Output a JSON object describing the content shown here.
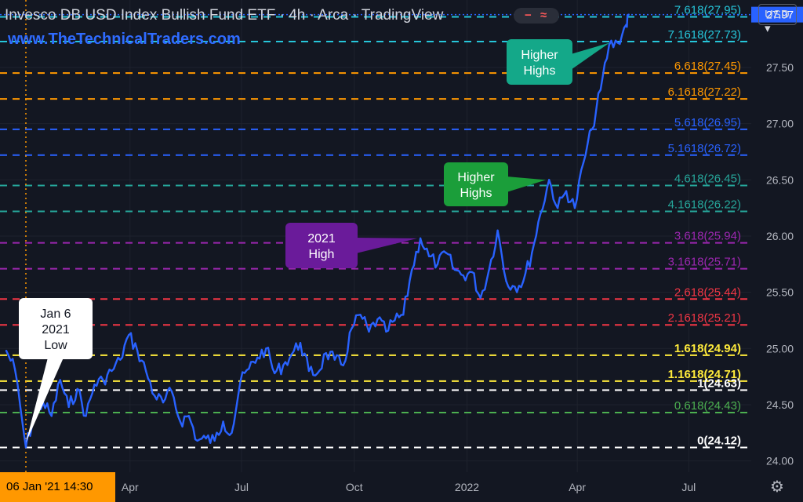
{
  "header": {
    "title": "Invesco DB USD Index Bullish Fund ETF · 4h · Arca · TradingView",
    "watermark": "www.TheTechnicalTraders.com",
    "currency": "USD",
    "settings_icon": "gear-icon",
    "indicator_icons": [
      "minus-icon",
      "wave-icon"
    ]
  },
  "crosshair": {
    "date_label": "06 Jan '21   14:30",
    "color": "#ff9800"
  },
  "colors": {
    "background": "#131722",
    "price_line": "#2962ff",
    "grid": "#1e222d",
    "axis_text": "#b2b5be",
    "last_price_bg": "#2962ff"
  },
  "chart_data": {
    "type": "line",
    "x_axis": {
      "ticks": [
        "Apr",
        "Jul",
        "Oct",
        "2022",
        "Apr",
        "Jul"
      ]
    },
    "y_axis": {
      "ticks": [
        24.0,
        24.5,
        25.0,
        25.5,
        26.0,
        26.5,
        27.0,
        27.5
      ],
      "tick_labels": [
        "24.00",
        "24.50",
        "25.00",
        "25.50",
        "26.00",
        "26.50",
        "27.00",
        "27.50"
      ],
      "range": [
        23.9,
        28.1
      ]
    },
    "last_price": "27.97",
    "series": [
      {
        "points": [
          [
            "2020-12-21",
            24.98
          ],
          [
            "2020-12-28",
            24.82
          ],
          [
            "2021-01-06",
            24.12
          ],
          [
            "2021-01-13",
            24.42
          ],
          [
            "2021-01-20",
            24.52
          ],
          [
            "2021-01-27",
            24.4
          ],
          [
            "2021-02-03",
            24.72
          ],
          [
            "2021-02-10",
            24.48
          ],
          [
            "2021-02-17",
            24.64
          ],
          [
            "2021-02-24",
            24.4
          ],
          [
            "2021-03-03",
            24.68
          ],
          [
            "2021-03-10",
            24.72
          ],
          [
            "2021-03-17",
            24.8
          ],
          [
            "2021-03-24",
            24.9
          ],
          [
            "2021-03-31",
            25.12
          ],
          [
            "2021-04-07",
            24.98
          ],
          [
            "2021-04-14",
            24.8
          ],
          [
            "2021-04-21",
            24.58
          ],
          [
            "2021-04-28",
            24.52
          ],
          [
            "2021-05-05",
            24.62
          ],
          [
            "2021-05-12",
            24.35
          ],
          [
            "2021-05-19",
            24.4
          ],
          [
            "2021-05-26",
            24.18
          ],
          [
            "2021-06-02",
            24.2
          ],
          [
            "2021-06-09",
            24.18
          ],
          [
            "2021-06-16",
            24.35
          ],
          [
            "2021-06-23",
            24.25
          ],
          [
            "2021-06-30",
            24.7
          ],
          [
            "2021-07-07",
            24.82
          ],
          [
            "2021-07-14",
            24.92
          ],
          [
            "2021-07-21",
            25.0
          ],
          [
            "2021-07-28",
            24.78
          ],
          [
            "2021-08-04",
            24.85
          ],
          [
            "2021-08-11",
            24.95
          ],
          [
            "2021-08-18",
            25.05
          ],
          [
            "2021-08-25",
            24.8
          ],
          [
            "2021-09-01",
            24.78
          ],
          [
            "2021-09-08",
            24.96
          ],
          [
            "2021-09-15",
            24.9
          ],
          [
            "2021-09-22",
            24.85
          ],
          [
            "2021-09-29",
            25.18
          ],
          [
            "2021-10-06",
            25.3
          ],
          [
            "2021-10-13",
            25.15
          ],
          [
            "2021-10-20",
            25.26
          ],
          [
            "2021-10-27",
            25.15
          ],
          [
            "2021-11-03",
            25.25
          ],
          [
            "2021-11-10",
            25.3
          ],
          [
            "2021-11-17",
            25.7
          ],
          [
            "2021-11-24",
            25.98
          ],
          [
            "2021-12-01",
            25.82
          ],
          [
            "2021-12-08",
            25.75
          ],
          [
            "2021-12-15",
            25.85
          ],
          [
            "2021-12-22",
            25.7
          ],
          [
            "2021-12-29",
            25.65
          ],
          [
            "2022-01-05",
            25.68
          ],
          [
            "2022-01-12",
            25.45
          ],
          [
            "2022-01-19",
            25.7
          ],
          [
            "2022-01-26",
            26.05
          ],
          [
            "2022-02-02",
            25.6
          ],
          [
            "2022-02-09",
            25.55
          ],
          [
            "2022-02-16",
            25.6
          ],
          [
            "2022-02-23",
            25.85
          ],
          [
            "2022-03-02",
            26.2
          ],
          [
            "2022-03-09",
            26.5
          ],
          [
            "2022-03-16",
            26.25
          ],
          [
            "2022-03-23",
            26.4
          ],
          [
            "2022-03-30",
            26.25
          ],
          [
            "2022-04-06",
            26.65
          ],
          [
            "2022-04-13",
            26.95
          ],
          [
            "2022-04-20",
            27.3
          ],
          [
            "2022-04-27",
            27.7
          ],
          [
            "2022-05-04",
            27.72
          ],
          [
            "2022-05-11",
            27.88
          ],
          [
            "2022-05-13",
            27.97
          ]
        ]
      }
    ],
    "fib_levels": [
      {
        "label": "7.618(27.95)",
        "value": 27.95,
        "color": "#26c6da"
      },
      {
        "label": "7.1618(27.73)",
        "value": 27.73,
        "color": "#26c6da"
      },
      {
        "label": "6.618(27.45)",
        "value": 27.45,
        "color": "#ff9800"
      },
      {
        "label": "6.1618(27.22)",
        "value": 27.22,
        "color": "#ff9800"
      },
      {
        "label": "5.618(26.95)",
        "value": 26.95,
        "color": "#2962ff"
      },
      {
        "label": "5.1618(26.72)",
        "value": 26.72,
        "color": "#2962ff"
      },
      {
        "label": "4.618(26.45)",
        "value": 26.45,
        "color": "#26a69a"
      },
      {
        "label": "4.1618(26.22)",
        "value": 26.22,
        "color": "#26a69a"
      },
      {
        "label": "3.618(25.94)",
        "value": 25.94,
        "color": "#9c27b0"
      },
      {
        "label": "3.1618(25.71)",
        "value": 25.71,
        "color": "#9c27b0"
      },
      {
        "label": "2.618(25.44)",
        "value": 25.44,
        "color": "#f23645"
      },
      {
        "label": "2.1618(25.21)",
        "value": 25.21,
        "color": "#f23645"
      },
      {
        "label": "1.618(24.94)",
        "value": 24.94,
        "color": "#ffeb3b"
      },
      {
        "label": "1.1618(24.71)",
        "value": 24.71,
        "color": "#ffeb3b"
      },
      {
        "label": "1(24.63)",
        "value": 24.63,
        "color": "#ffffff"
      },
      {
        "label": "0.618(24.43)",
        "value": 24.43,
        "color": "#4caf50"
      },
      {
        "label": "0(24.12)",
        "value": 24.12,
        "color": "#ffffff"
      }
    ],
    "annotations": [
      {
        "text": [
          "Jan 6",
          "2021",
          "Low"
        ],
        "bg": "#ffffff",
        "fg": "#131722",
        "points_to": [
          "2021-01-06",
          24.12
        ]
      },
      {
        "text": [
          "2021",
          "High"
        ],
        "bg": "#6a1b9a",
        "fg": "#ffffff",
        "points_to": [
          "2021-11-24",
          25.98
        ]
      },
      {
        "text": [
          "Higher",
          "Highs"
        ],
        "bg": "#1b9e3a",
        "fg": "#ffffff",
        "points_to": [
          "2022-03-09",
          26.5
        ]
      },
      {
        "text": [
          "Higher",
          "Highs"
        ],
        "bg": "#14a889",
        "fg": "#ffffff",
        "points_to": [
          "2022-04-30",
          27.72
        ]
      }
    ]
  }
}
